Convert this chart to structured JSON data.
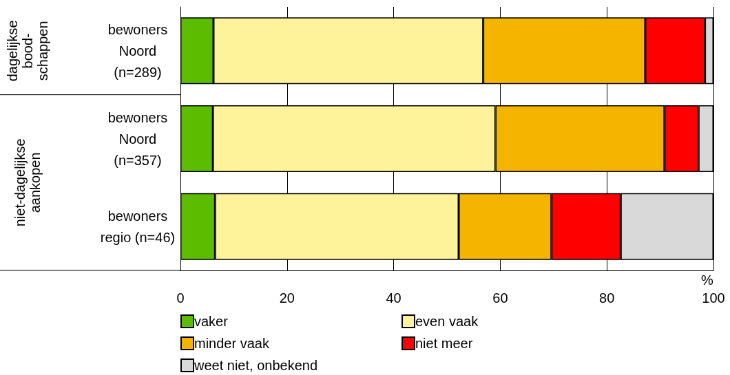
{
  "chart_data": {
    "type": "bar",
    "orientation": "horizontal",
    "stacked": true,
    "categories": [
      "bewoners\nNoord\n(n=289)",
      "bewoners\nNoord\n(n=357)",
      "bewoners\nregio (n=46)"
    ],
    "series": [
      {
        "name": "vaker",
        "color": "#5cbd00",
        "values": [
          6.2,
          6.1,
          6.5
        ]
      },
      {
        "name": "even vaak",
        "color": "#fef29a",
        "values": [
          50.6,
          53.0,
          45.7
        ]
      },
      {
        "name": "minder vaak",
        "color": "#f4b400",
        "values": [
          30.4,
          31.7,
          17.4
        ]
      },
      {
        "name": "niet meer",
        "color": "#ff0000",
        "values": [
          11.2,
          6.4,
          13.0
        ]
      },
      {
        "name": "weet niet, onbekend",
        "color": "#d9d9d9",
        "values": [
          1.6,
          2.8,
          17.4
        ]
      }
    ],
    "xlabel": "%",
    "xlim": [
      0,
      100
    ],
    "xticks": [
      0,
      20,
      40,
      60,
      80,
      100
    ],
    "grid": "x",
    "legend": "bottom",
    "annotations": [
      "dagelijkse\nbood-\nschappen",
      "niet-dagelijkse\naankopen"
    ]
  }
}
